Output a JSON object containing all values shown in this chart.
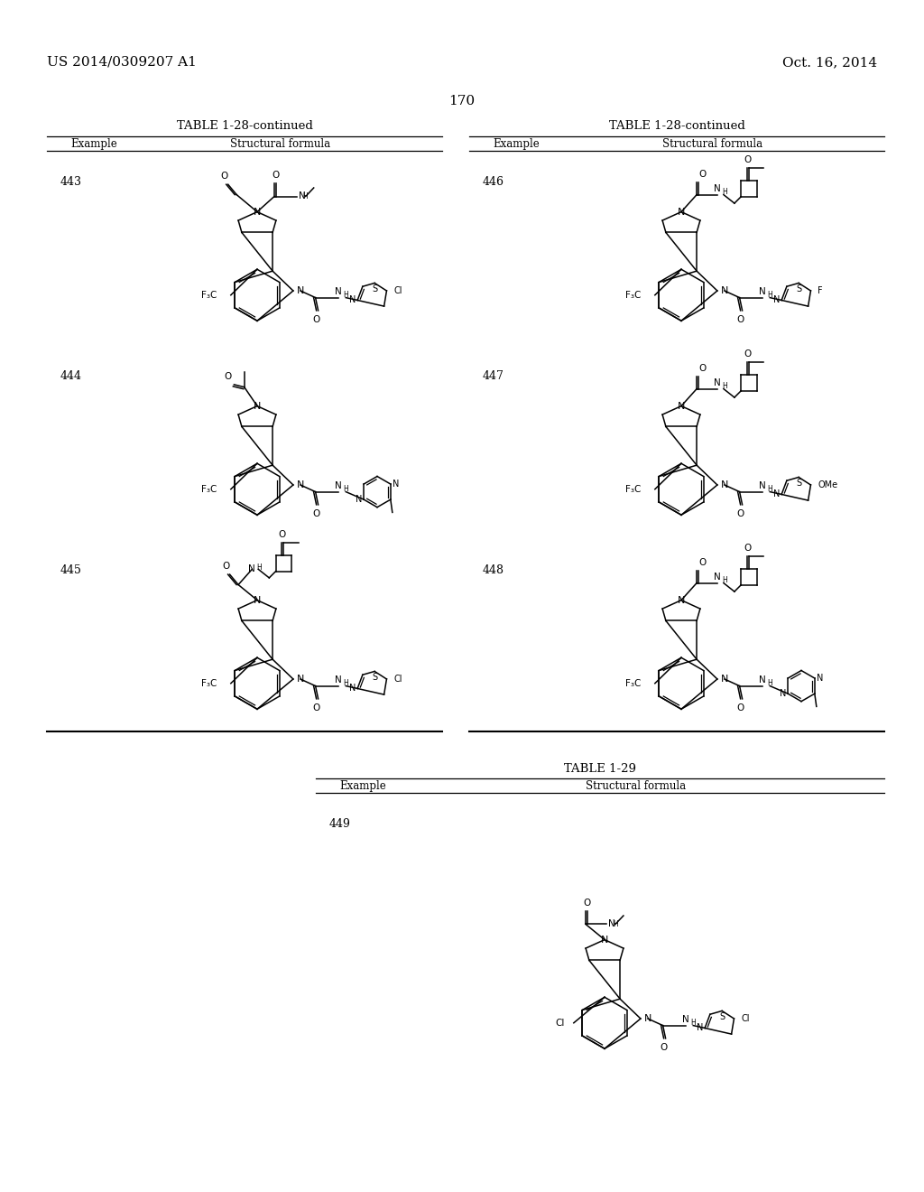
{
  "page_header_left": "US 2014/0309207 A1",
  "page_header_right": "Oct. 16, 2014",
  "page_number": "170",
  "background_color": "#ffffff",
  "text_color": "#000000",
  "table_title_left": "TABLE 1-28-continued",
  "table_title_right": "TABLE 1-28-continued",
  "table_title_bottom": "TABLE 1-29",
  "col_header_example": "Example",
  "col_header_formula": "Structural formula",
  "examples_left": [
    "443",
    "444",
    "445"
  ],
  "examples_right": [
    "446",
    "447",
    "448"
  ],
  "examples_bottom": [
    "449"
  ]
}
